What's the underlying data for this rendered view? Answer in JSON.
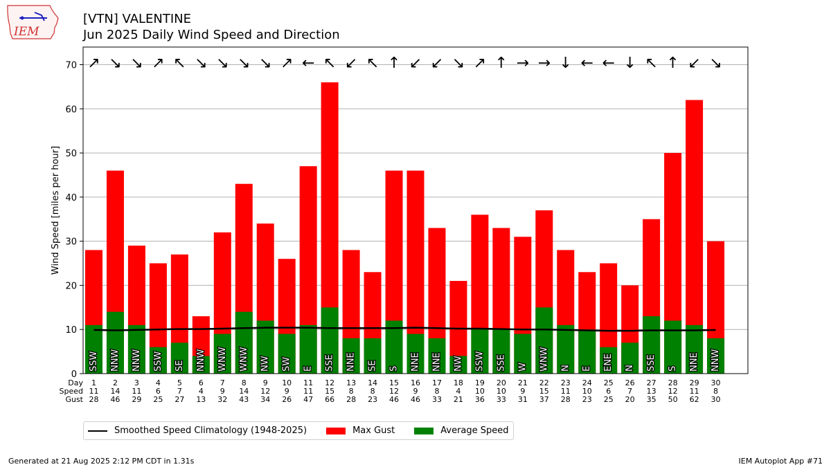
{
  "header": {
    "title_line1": "[VTN] VALENTINE",
    "title_line2": "Jun 2025 Daily Wind Speed and Direction",
    "logo_text": "IEM"
  },
  "colors": {
    "gust": "#ff0000",
    "average": "#008000",
    "climatology": "#000000",
    "grid": "#b0b0b0"
  },
  "chart_data": {
    "type": "bar",
    "ylabel": "Wind Speed [miles per hour]",
    "ylim": [
      0,
      74
    ],
    "yticks": [
      0,
      10,
      20,
      30,
      40,
      50,
      60,
      70
    ],
    "grid": "horizontal",
    "legend_position": "bottom-left",
    "row_labels": [
      "Day",
      "Speed",
      "Gust"
    ],
    "days": [
      1,
      2,
      3,
      4,
      5,
      6,
      7,
      8,
      9,
      10,
      11,
      12,
      13,
      14,
      15,
      16,
      17,
      18,
      19,
      20,
      21,
      22,
      23,
      24,
      25,
      26,
      27,
      28,
      29,
      30
    ],
    "avg_speed": [
      11,
      14,
      11,
      6,
      7,
      4,
      9,
      14,
      12,
      9,
      11,
      15,
      8,
      8,
      12,
      9,
      8,
      4,
      10,
      10,
      9,
      15,
      11,
      10,
      6,
      7,
      13,
      12,
      11,
      8
    ],
    "max_gust": [
      28,
      46,
      29,
      25,
      27,
      13,
      32,
      43,
      34,
      26,
      47,
      66,
      28,
      23,
      46,
      46,
      33,
      21,
      36,
      33,
      31,
      37,
      28,
      23,
      25,
      20,
      35,
      50,
      62,
      30
    ],
    "direction": [
      "SSW",
      "NNW",
      "NNW",
      "SSW",
      "SE",
      "NNW",
      "WNW",
      "WNW",
      "NW",
      "SW",
      "E",
      "SSE",
      "NNE",
      "SE",
      "S",
      "NNE",
      "NNE",
      "NW",
      "SSW",
      "SSE",
      "W",
      "WNW",
      "N",
      "E",
      "ENE",
      "N",
      "SSE",
      "S",
      "NNE",
      "NNW"
    ],
    "arrow_glyph": [
      "↗",
      "↘",
      "↘",
      "↗",
      "↖",
      "↘",
      "↘",
      "↘",
      "↘",
      "↗",
      "←",
      "↖",
      "↙",
      "↖",
      "↑",
      "↙",
      "↙",
      "↘",
      "↗",
      "↑",
      "→",
      "→",
      "↓",
      "←",
      "←",
      "↓",
      "↖",
      "↑",
      "↙",
      "↘"
    ],
    "climatology": [
      9.9,
      9.8,
      9.9,
      10.0,
      10.1,
      10.1,
      10.2,
      10.3,
      10.4,
      10.4,
      10.4,
      10.3,
      10.3,
      10.3,
      10.3,
      10.4,
      10.3,
      10.2,
      10.2,
      10.1,
      10.0,
      10.0,
      9.9,
      9.8,
      9.7,
      9.7,
      9.8,
      9.8,
      9.8,
      9.9
    ],
    "series": [
      {
        "name": "Smoothed Speed Climatology (1948-2025)"
      },
      {
        "name": "Max Gust"
      },
      {
        "name": "Average Speed"
      }
    ]
  },
  "footer": {
    "generated": "Generated at 21 Aug 2025 2:12 PM CDT in 1.31s",
    "app": "IEM Autoplot App #71"
  }
}
